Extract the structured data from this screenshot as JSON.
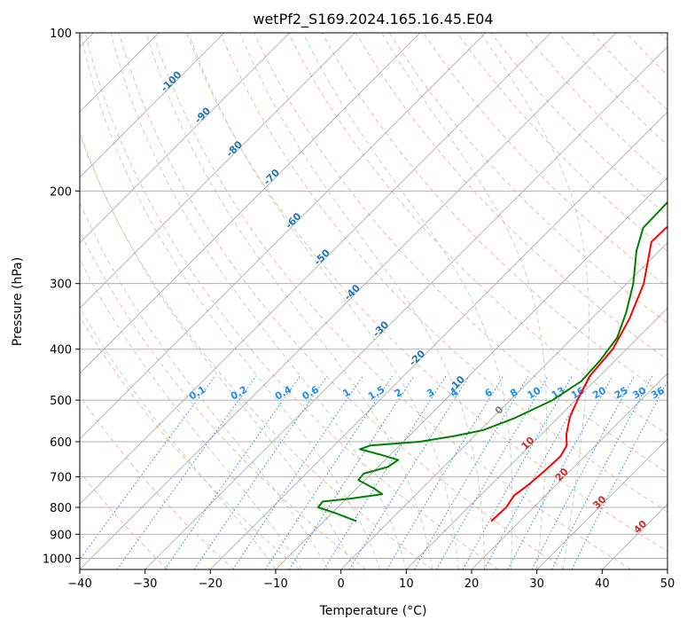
{
  "chart_data": {
    "type": "line",
    "title": "wetPf2_S169.2024.165.16.45.E04",
    "xlabel": "Temperature (°C)",
    "ylabel": "Pressure (hPa)",
    "xlim": [
      -40,
      50
    ],
    "ylim": [
      1050,
      100
    ],
    "y_scale": "log",
    "x_ticks": [
      -40,
      -30,
      -20,
      -10,
      0,
      10,
      20,
      30,
      40,
      50
    ],
    "x_tick_labels": [
      "−40",
      "−30",
      "−20",
      "−10",
      "0",
      "10",
      "20",
      "30",
      "40",
      "50"
    ],
    "y_ticks": [
      100,
      200,
      300,
      400,
      500,
      600,
      700,
      800,
      900,
      1000
    ],
    "y_tick_labels": [
      "100",
      "200",
      "300",
      "400",
      "500",
      "600",
      "700",
      "800",
      "900",
      "1000"
    ],
    "grid": true,
    "background": {
      "isotherms": {
        "color": "#808080",
        "style": "solid",
        "spacing_c": 10
      },
      "dry_adiabats": {
        "color": "#f4a582",
        "style": "dashed"
      },
      "moist_adiabats": {
        "color": "#a6d5a6",
        "style": "dashed"
      },
      "mixing_ratio_lines": {
        "color": "#1f77e0",
        "style": "dotted",
        "labels": [
          "0.1",
          "0.2",
          "0.4",
          "0.6",
          "1",
          "1.5",
          "2",
          "3",
          "4",
          "6",
          "8",
          "10",
          "13",
          "16",
          "20",
          "25",
          "30",
          "36"
        ]
      },
      "isotherm_labels_blue": [
        "-100",
        "-90",
        "-80",
        "-70",
        "-60",
        "-50",
        "-40",
        "-30",
        "-20",
        "-10"
      ],
      "isotherm_labels_gray": [
        "0"
      ],
      "isotherm_labels_red": [
        "10",
        "20",
        "30",
        "40"
      ]
    },
    "series": [
      {
        "color": "#ff0000",
        "points": [
          {
            "p": 850,
            "t": 15.6
          },
          {
            "p": 800,
            "t": 15.8
          },
          {
            "p": 760,
            "t": 15.2
          },
          {
            "p": 720,
            "t": 15.8
          },
          {
            "p": 680,
            "t": 16.1
          },
          {
            "p": 640,
            "t": 16.3
          },
          {
            "p": 610,
            "t": 15.6
          },
          {
            "p": 580,
            "t": 13.8
          },
          {
            "p": 540,
            "t": 11.8
          },
          {
            "p": 500,
            "t": 10.3
          },
          {
            "p": 450,
            "t": 8.5
          },
          {
            "p": 400,
            "t": 7.9
          },
          {
            "p": 350,
            "t": 5.8
          },
          {
            "p": 300,
            "t": 2.6
          },
          {
            "p": 250,
            "t": -2.6
          },
          {
            "p": 235,
            "t": -2.5
          },
          {
            "p": 220,
            "t": -0.8
          },
          {
            "p": 205,
            "t": 3.3
          },
          {
            "p": 190,
            "t": 8.8
          },
          {
            "p": 175,
            "t": 13.5
          },
          {
            "p": 160,
            "t": 17.0
          },
          {
            "p": 145,
            "t": 19.8
          },
          {
            "p": 130,
            "t": 21.2
          },
          {
            "p": 120,
            "t": 22.0
          },
          {
            "p": 110,
            "t": 24.0
          },
          {
            "p": 100,
            "t": 25.8
          }
        ]
      },
      {
        "color": "#008000",
        "points": [
          {
            "p": 850,
            "t": -5.0
          },
          {
            "p": 820,
            "t": -9.5
          },
          {
            "p": 800,
            "t": -13.0
          },
          {
            "p": 780,
            "t": -13.2
          },
          {
            "p": 770,
            "t": -9.5
          },
          {
            "p": 755,
            "t": -5.2
          },
          {
            "p": 735,
            "t": -7.5
          },
          {
            "p": 710,
            "t": -11.0
          },
          {
            "p": 690,
            "t": -11.2
          },
          {
            "p": 670,
            "t": -8.5
          },
          {
            "p": 650,
            "t": -8.0
          },
          {
            "p": 635,
            "t": -11.5
          },
          {
            "p": 620,
            "t": -15.5
          },
          {
            "p": 610,
            "t": -14.5
          },
          {
            "p": 600,
            "t": -7.5
          },
          {
            "p": 585,
            "t": -3.0
          },
          {
            "p": 570,
            "t": 0.5
          },
          {
            "p": 540,
            "t": 3.5
          },
          {
            "p": 500,
            "t": 6.5
          },
          {
            "p": 460,
            "t": 8.0
          },
          {
            "p": 420,
            "t": 7.7
          },
          {
            "p": 380,
            "t": 6.8
          },
          {
            "p": 340,
            "t": 4.3
          },
          {
            "p": 300,
            "t": 1.0
          },
          {
            "p": 260,
            "t": -3.5
          },
          {
            "p": 235,
            "t": -6.0
          },
          {
            "p": 210,
            "t": -6.2
          },
          {
            "p": 195,
            "t": -5.2
          },
          {
            "p": 180,
            "t": -6.5
          },
          {
            "p": 165,
            "t": -8.0
          },
          {
            "p": 155,
            "t": -10.5
          },
          {
            "p": 140,
            "t": -13.5
          },
          {
            "p": 125,
            "t": -15.0
          },
          {
            "p": 115,
            "t": -14.5
          },
          {
            "p": 105,
            "t": -14.0
          },
          {
            "p": 100,
            "t": -14.5
          }
        ]
      }
    ]
  }
}
